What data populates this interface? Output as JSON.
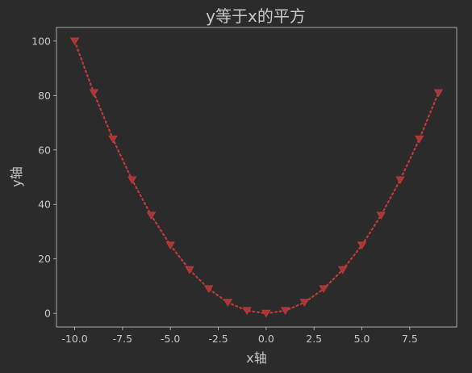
{
  "chart_data": {
    "type": "line",
    "title": "y等于x的平方",
    "xlabel": "x轴",
    "ylabel": "y轴",
    "xlim": [
      -10.95,
      9.95
    ],
    "ylim": [
      -5,
      105
    ],
    "x_ticks": [
      -10.0,
      -7.5,
      -5.0,
      -2.5,
      0.0,
      2.5,
      5.0,
      7.5
    ],
    "x_tick_labels": [
      "-10.0",
      "-7.5",
      "-5.0",
      "-2.5",
      "0.0",
      "2.5",
      "5.0",
      "7.5"
    ],
    "y_ticks": [
      0,
      20,
      40,
      60,
      80,
      100
    ],
    "y_tick_labels": [
      "0",
      "20",
      "40",
      "60",
      "80",
      "100"
    ],
    "grid": false,
    "colors": {
      "background": "#2b2b2b",
      "axes": "#c8c8c8",
      "series": "#c03a3a",
      "marker": "#a83838"
    },
    "series": [
      {
        "line_style": "dotted",
        "marker": "triangle-down",
        "x": [
          -10,
          -9,
          -8,
          -7,
          -6,
          -5,
          -4,
          -3,
          -2,
          -1,
          0,
          1,
          2,
          3,
          4,
          5,
          6,
          7,
          8,
          9
        ],
        "y": [
          100,
          81,
          64,
          49,
          36,
          25,
          16,
          9,
          4,
          1,
          0,
          1,
          4,
          9,
          16,
          25,
          36,
          49,
          64,
          81
        ]
      }
    ]
  }
}
